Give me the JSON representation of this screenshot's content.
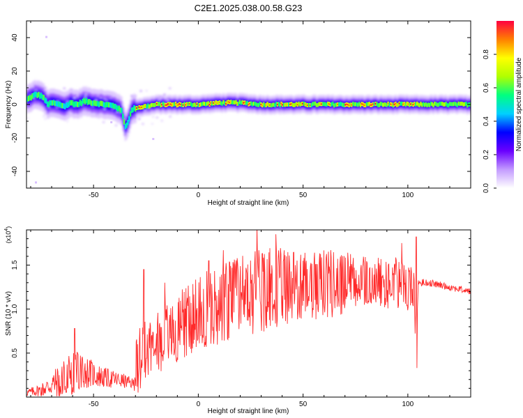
{
  "title": "C2E1.2025.038.00.58.G23",
  "colors": {
    "snr_line": "#ff2a2a",
    "axis": "#000000",
    "background": "#ffffff"
  },
  "chart_data": [
    {
      "type": "heatmap",
      "xlabel": "Height of straight line (km)",
      "ylabel": "Frequency (Hz)",
      "xlim": [
        -82,
        130
      ],
      "ylim": [
        -50,
        50
      ],
      "x_ticks": [
        -50,
        0,
        50,
        100
      ],
      "y_ticks": [
        40,
        20,
        0,
        -20,
        -40
      ],
      "colorbar": {
        "label": "Normalized spectral amplitude",
        "range": [
          0,
          1
        ],
        "ticks": [
          "0.0",
          "0.2",
          "0.4",
          "0.6",
          "0.8"
        ],
        "tick_values": [
          0,
          0.2,
          0.4,
          0.6,
          0.8
        ],
        "colormap": [
          "#ffffff",
          "#c39bff",
          "#6a00ff",
          "#0000ff",
          "#00d0ff",
          "#00ff80",
          "#b0ff00",
          "#ffff00",
          "#ff8000",
          "#ff0040"
        ]
      },
      "ridge": {
        "x": [
          -82,
          -78,
          -75,
          -72,
          -70,
          -67,
          -64,
          -61,
          -58,
          -55,
          -50,
          -45,
          -40,
          -37,
          -35,
          -32,
          -30,
          -25,
          -20,
          -10,
          0,
          10,
          20,
          30,
          40,
          50,
          60,
          70,
          80,
          90,
          100,
          105,
          110,
          120,
          130
        ],
        "freq": [
          3,
          6,
          5,
          0,
          1,
          0,
          -1,
          1,
          0,
          2,
          1,
          0,
          -1,
          -4,
          -14,
          -3,
          -2,
          -1,
          0,
          0,
          0,
          1,
          1,
          0,
          0,
          0,
          0,
          0,
          0,
          0,
          0,
          0,
          0,
          0,
          0
        ]
      },
      "outlier_points": [
        {
          "x": -73,
          "freq": 41
        },
        {
          "x": -78,
          "freq": -46
        },
        {
          "x": -42,
          "freq": -10
        },
        {
          "x": -22,
          "freq": -20
        }
      ]
    },
    {
      "type": "line",
      "xlabel": "Height of straight line (km)",
      "ylabel": "SNR (10 * v/v)",
      "y_multiplier_label": "(x10",
      "y_multiplier_exp": "4",
      "xlim": [
        -82,
        130
      ],
      "ylim": [
        0,
        1.9
      ],
      "x_ticks": [
        -50,
        0,
        50,
        100
      ],
      "y_ticks": [
        0.5,
        1.0,
        1.5
      ],
      "y_tick_labels": [
        "0.5",
        "1.0",
        "1.5"
      ],
      "series": [
        {
          "envelope": {
            "x": [
              -82,
              -75,
              -70,
              -65,
              -60,
              -55,
              -50,
              -45,
              -40,
              -35,
              -31,
              -30,
              -28,
              -26,
              -20,
              -10,
              0,
              10,
              20,
              30,
              40,
              50,
              60,
              70,
              80,
              90,
              95,
              100,
              103,
              104,
              105,
              110,
              120,
              130
            ],
            "mean": [
              0.05,
              0.08,
              0.14,
              0.2,
              0.28,
              0.3,
              0.26,
              0.22,
              0.2,
              0.18,
              0.15,
              0.35,
              0.45,
              0.55,
              0.6,
              0.8,
              0.95,
              1.05,
              1.15,
              1.2,
              1.25,
              1.25,
              1.28,
              1.3,
              1.3,
              1.28,
              1.3,
              1.22,
              1.2,
              0.6,
              1.3,
              1.3,
              1.25,
              1.2
            ],
            "amp": [
              0.04,
              0.08,
              0.14,
              0.22,
              0.25,
              0.2,
              0.15,
              0.12,
              0.1,
              0.08,
              0.06,
              0.3,
              0.4,
              0.35,
              0.35,
              0.4,
              0.45,
              0.45,
              0.45,
              0.5,
              0.45,
              0.4,
              0.4,
              0.35,
              0.3,
              0.3,
              0.3,
              0.25,
              0.3,
              0.1,
              0.05,
              0.04,
              0.04,
              0.04
            ]
          },
          "spikes": [
            {
              "x": -59,
              "y": 0.78
            },
            {
              "x": -26,
              "y": 1.45
            },
            {
              "x": -16,
              "y": 1.3
            },
            {
              "x": 5,
              "y": 1.55
            },
            {
              "x": 12,
              "y": 1.67
            },
            {
              "x": 28,
              "y": 1.93
            },
            {
              "x": 37,
              "y": 1.85
            },
            {
              "x": 97,
              "y": 1.75
            },
            {
              "x": 104,
              "y": 1.82
            },
            {
              "x": 104.3,
              "y": 0.33
            }
          ]
        }
      ]
    }
  ]
}
